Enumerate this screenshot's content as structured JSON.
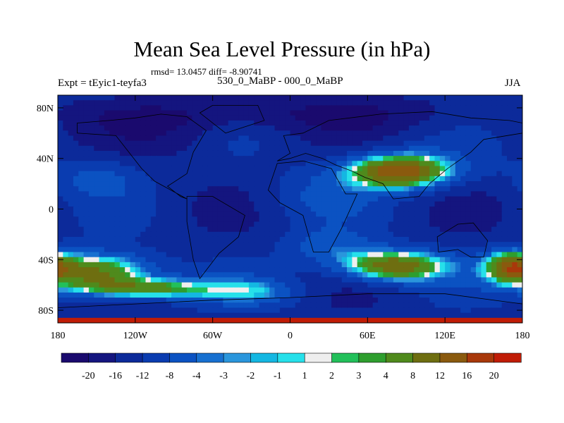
{
  "chart_data": {
    "type": "heatmap",
    "title": "Mean Sea Level Pressure (in hPa)",
    "stats": "rmsd= 13.0457 diff= -8.90741",
    "experiment": "Expt = tEyic1-teyfa3",
    "subtitle": "530_0_MaBP - 000_0_MaBP",
    "season": "JJA",
    "xlim": [
      -180,
      180
    ],
    "ylim": [
      -90,
      90
    ],
    "x_ticks": [
      {
        "value": -180,
        "label": "180"
      },
      {
        "value": -120,
        "label": "120W"
      },
      {
        "value": -60,
        "label": "60W"
      },
      {
        "value": 0,
        "label": "0"
      },
      {
        "value": 60,
        "label": "60E"
      },
      {
        "value": 120,
        "label": "120E"
      },
      {
        "value": 180,
        "label": "180"
      }
    ],
    "y_ticks": [
      {
        "value": 80,
        "label": "80N"
      },
      {
        "value": 40,
        "label": "40N"
      },
      {
        "value": 0,
        "label": "0"
      },
      {
        "value": -40,
        "label": "40S"
      },
      {
        "value": -80,
        "label": "80S"
      }
    ],
    "colorbar": {
      "levels": [
        -20,
        -16,
        -12,
        -8,
        -4,
        -3,
        -2,
        -1,
        1,
        2,
        3,
        4,
        8,
        12,
        16,
        20
      ],
      "labels": [
        "-20",
        "-16",
        "-12",
        "-8",
        "-4",
        "-3",
        "-2",
        "-1",
        "1",
        "2",
        "3",
        "4",
        "8",
        "12",
        "16",
        "20"
      ],
      "colors": [
        "#1a0a6e",
        "#14157f",
        "#0c2a9a",
        "#0a3cb0",
        "#0b52c2",
        "#1770d0",
        "#2a96dc",
        "#14b7e2",
        "#26e0ea",
        "#eeeeee",
        "#22c05a",
        "#2e9e2e",
        "#4f8a1c",
        "#6e6e10",
        "#8a5a0e",
        "#a8380a",
        "#c01c06"
      ]
    },
    "field_features": [
      {
        "name": "background",
        "value": -14
      },
      {
        "name": "high-central-asia",
        "lon": 85,
        "lat": 30,
        "value": 12
      },
      {
        "name": "high-australia",
        "lon": 80,
        "lat": -45,
        "value": 10
      },
      {
        "name": "high-south-pacific",
        "lon": -150,
        "lat": -50,
        "value": 10
      },
      {
        "name": "high-east-pacific",
        "lon": -120,
        "lat": -62,
        "value": 5
      },
      {
        "name": "high-south-pacific-east",
        "lon": 165,
        "lat": -45,
        "value": 6
      }
    ]
  }
}
